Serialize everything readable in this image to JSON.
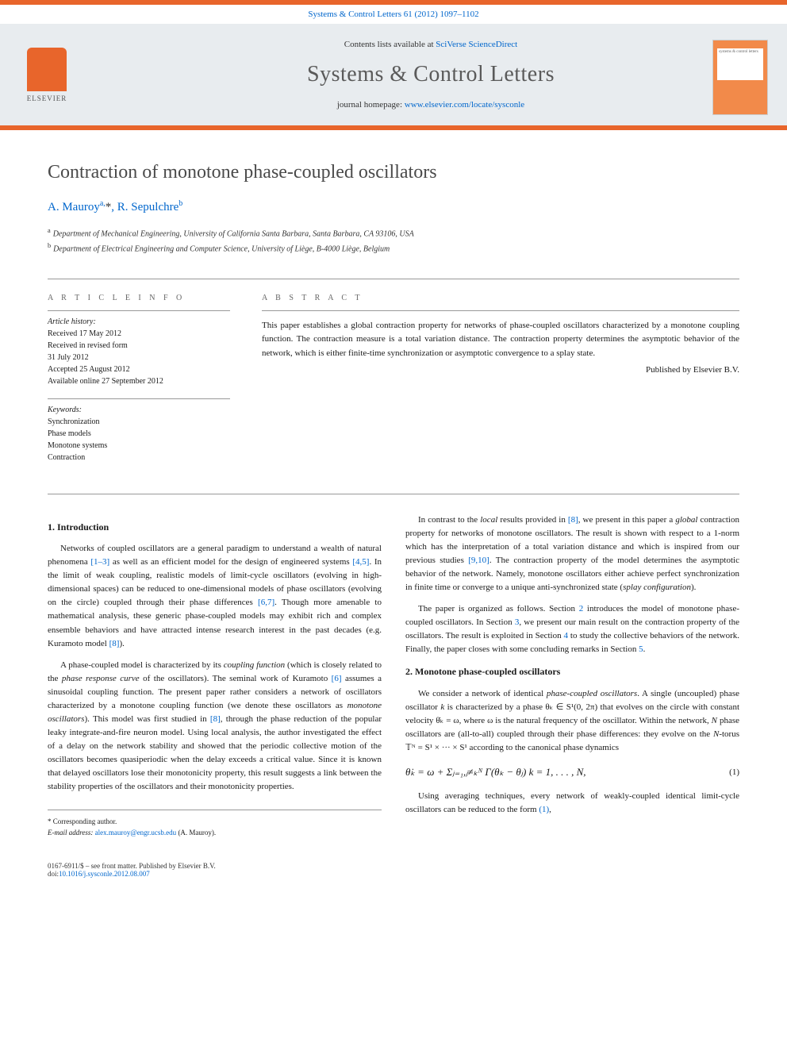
{
  "colors": {
    "accent": "#e8652b",
    "link": "#0066cc",
    "header_bg": "#e8ecef",
    "text": "#1a1a1a",
    "title_gray": "#4a4a4a"
  },
  "header": {
    "journal_ref": "Systems & Control Letters 61 (2012) 1097–1102",
    "contents_prefix": "Contents lists available at ",
    "contents_link": "SciVerse ScienceDirect",
    "journal_title": "Systems & Control Letters",
    "homepage_prefix": "journal homepage: ",
    "homepage_link": "www.elsevier.com/locate/sysconle",
    "publisher_name": "ELSEVIER",
    "cover_label": "systems & control letters"
  },
  "article": {
    "title": "Contraction of monotone phase-coupled oscillators",
    "authors_html": "A. Mauroy",
    "author1": "A. Mauroy",
    "author1_sup": "a,",
    "author1_star": "*",
    "author_sep": ", ",
    "author2": "R. Sepulchre",
    "author2_sup": "b",
    "affiliations": [
      {
        "sup": "a",
        "text": "Department of Mechanical Engineering, University of California Santa Barbara, Santa Barbara, CA 93106, USA"
      },
      {
        "sup": "b",
        "text": "Department of Electrical Engineering and Computer Science, University of Liège, B-4000 Liège, Belgium"
      }
    ]
  },
  "info": {
    "label": "A R T I C L E   I N F O",
    "history_heading": "Article history:",
    "history_lines": [
      "Received 17 May 2012",
      "Received in revised form",
      "31 July 2012",
      "Accepted 25 August 2012",
      "Available online 27 September 2012"
    ],
    "keywords_heading": "Keywords:",
    "keywords": [
      "Synchronization",
      "Phase models",
      "Monotone systems",
      "Contraction"
    ]
  },
  "abstract": {
    "label": "A B S T R A C T",
    "text": "This paper establishes a global contraction property for networks of phase-coupled oscillators characterized by a monotone coupling function. The contraction measure is a total variation distance. The contraction property determines the asymptotic behavior of the network, which is either finite-time synchronization or asymptotic convergence to a splay state.",
    "publisher": "Published by Elsevier B.V."
  },
  "body": {
    "left": {
      "heading1": "1. Introduction",
      "p1a": "Networks of coupled oscillators are a general paradigm to understand a wealth of natural phenomena ",
      "p1_ref1": "[1–3]",
      "p1b": " as well as an efficient model for the design of engineered systems ",
      "p1_ref2": "[4,5]",
      "p1c": ". In the limit of weak coupling, realistic models of limit-cycle oscillators (evolving in high-dimensional spaces) can be reduced to one-dimensional models of phase oscillators (evolving on the circle) coupled through their phase differences ",
      "p1_ref3": "[6,7]",
      "p1d": ". Though more amenable to mathematical analysis, these generic phase-coupled models may exhibit rich and complex ensemble behaviors and have attracted intense research interest in the past decades (e.g. Kuramoto model ",
      "p1_ref4": "[8]",
      "p1e": ").",
      "p2a": "A phase-coupled model is characterized by its ",
      "p2_em1": "coupling function",
      "p2b": " (which is closely related to the ",
      "p2_em2": "phase response curve",
      "p2c": " of the oscillators). The seminal work of Kuramoto ",
      "p2_ref1": "[6]",
      "p2d": " assumes a sinusoidal coupling function. The present paper rather considers a network of oscillators characterized by a monotone coupling function (we denote these oscillators as ",
      "p2_em3": "monotone oscillators",
      "p2e": "). This model was first studied in ",
      "p2_ref2": "[8]",
      "p2f": ", through the phase reduction of the popular leaky integrate-and-fire neuron model. Using local analysis, the author investigated the effect of a delay on the network stability and showed that the periodic collective motion of the oscillators becomes quasiperiodic when the delay exceeds a critical value. Since it is known that delayed oscillators lose their monotonicity property, this result suggests a link between the stability properties of the oscillators and their monotonicity properties."
    },
    "right": {
      "p1a": "In contrast to the ",
      "p1_em1": "local",
      "p1b": " results provided in ",
      "p1_ref1": "[8]",
      "p1c": ", we present in this paper a ",
      "p1_em2": "global",
      "p1d": " contraction property for networks of monotone oscillators. The result is shown with respect to a 1-norm which has the interpretation of a total variation distance and which is inspired from our previous studies ",
      "p1_ref2": "[9,10]",
      "p1e": ". The contraction property of the model determines the asymptotic behavior of the network. Namely, monotone oscillators either achieve perfect synchronization in finite time or converge to a unique anti-synchronized state (",
      "p1_em3": "splay configuration",
      "p1f": ").",
      "p2a": "The paper is organized as follows. Section ",
      "p2_ref1": "2",
      "p2b": " introduces the model of monotone phase-coupled oscillators. In Section ",
      "p2_ref2": "3",
      "p2c": ", we present our main result on the contraction property of the oscillators. The result is exploited in Section ",
      "p2_ref3": "4",
      "p2d": " to study the collective behaviors of the network. Finally, the paper closes with some concluding remarks in Section ",
      "p2_ref4": "5",
      "p2e": ".",
      "heading2": "2. Monotone phase-coupled oscillators",
      "p3a": "We consider a network of identical ",
      "p3_em1": "phase-coupled oscillators",
      "p3b": ". A single (uncoupled) phase oscillator ",
      "p3_var1": "k",
      "p3c": " is characterized by a phase θₖ ∈ S¹(0, 2π) that evolves on the circle with constant velocity θ̇ₖ = ω, where ω is the natural frequency of the oscillator. Within the network, ",
      "p3_var2": "N",
      "p3d": " phase oscillators are (all-to-all) coupled through their phase differences: they evolve on the ",
      "p3_var3": "N",
      "p3e": "-torus 𝕋ᴺ = S¹ × ··· × S¹ according to the canonical phase dynamics",
      "equation": "θ̇ₖ = ω + Σⱼ₌₁,ⱼ≠ₖᴺ Γ(θₖ − θⱼ)   k = 1, . . . , N,",
      "eq_num": "(1)",
      "p4a": "Using averaging techniques, every network of weakly-coupled identical limit-cycle oscillators can be reduced to the form ",
      "p4_ref1": "(1)",
      "p4b": ","
    }
  },
  "footnote": {
    "corresponding": "Corresponding author.",
    "email_label": "E-mail address:",
    "email": "alex.mauroy@engr.ucsb.edu",
    "email_who": "(A. Mauroy)."
  },
  "footer": {
    "issn": "0167-6911/$ – see front matter. Published by Elsevier B.V.",
    "doi_label": "doi:",
    "doi": "10.1016/j.sysconle.2012.08.007"
  }
}
